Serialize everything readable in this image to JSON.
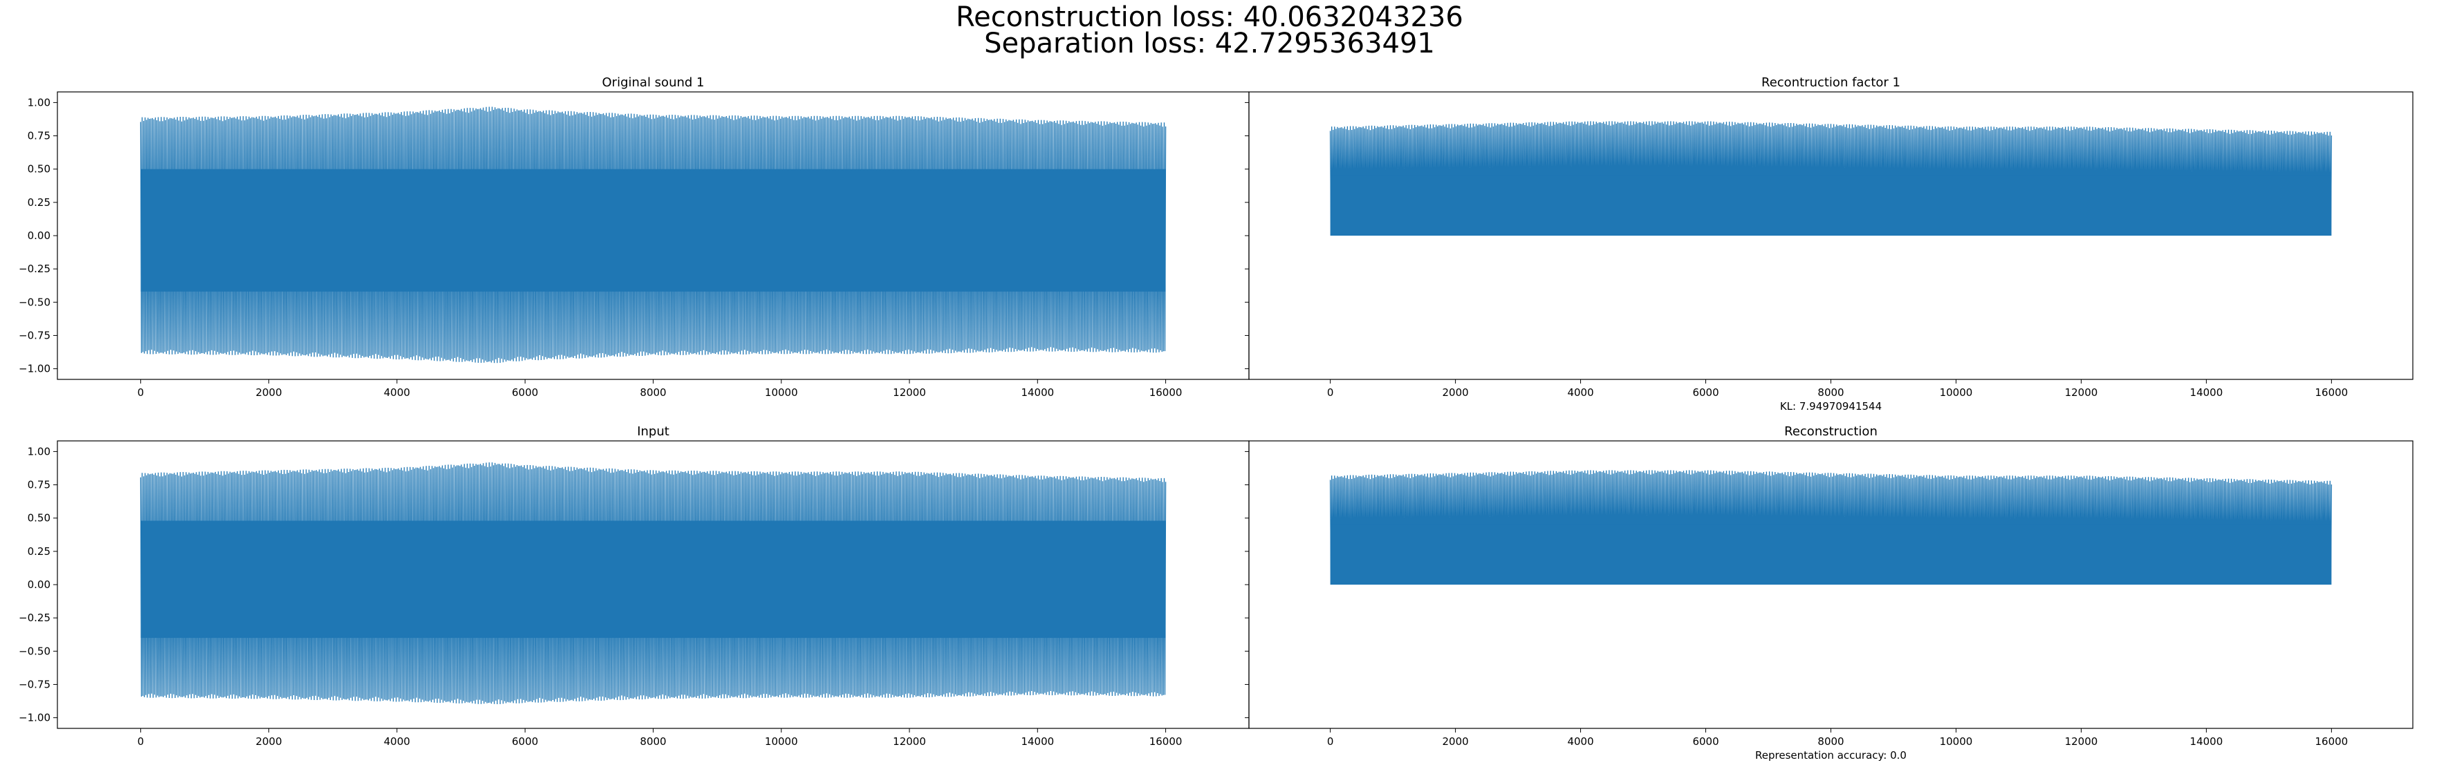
{
  "figure": {
    "suptitle_line1": "Reconstruction loss: 40.0632043236",
    "suptitle_line2": "Separation loss: 42.7295363491",
    "series_color": "#1f77b4",
    "sharey": true
  },
  "chart_data": [
    {
      "type": "line",
      "title": "Original sound 1",
      "xlabel": "",
      "xlim": [
        -1300,
        17300
      ],
      "ylim": [
        -1.08,
        1.08
      ],
      "xticks": [
        0,
        2000,
        4000,
        6000,
        8000,
        10000,
        12000,
        14000,
        16000
      ],
      "yticks": [
        1.0,
        0.75,
        0.5,
        0.25,
        0.0,
        -0.25,
        -0.5,
        -0.75,
        -1.0
      ],
      "xtick_labels": [
        "0",
        "2000",
        "4000",
        "6000",
        "8000",
        "10000",
        "12000",
        "14000",
        "16000"
      ],
      "ytick_labels": [
        "1.00",
        "0.75",
        "0.50",
        "0.25",
        "0.00",
        "−0.25",
        "−0.50",
        "−0.75",
        "−1.00"
      ],
      "signal": {
        "samples": 16000,
        "symmetric": true,
        "envelope_x": [
          0,
          2000,
          4000,
          5500,
          6000,
          8000,
          10000,
          12000,
          14000,
          16000
        ],
        "envelope_max": [
          0.89,
          0.9,
          0.93,
          0.97,
          0.95,
          0.91,
          0.9,
          0.9,
          0.87,
          0.85
        ],
        "envelope_min": [
          -0.89,
          -0.9,
          -0.93,
          -0.96,
          -0.94,
          -0.9,
          -0.89,
          -0.89,
          -0.87,
          -0.88
        ],
        "core_max": 0.5,
        "core_min": -0.42
      }
    },
    {
      "type": "line",
      "title": "Recontruction factor 1",
      "xlabel": "KL: 7.94970941544",
      "xlim": [
        -1300,
        17300
      ],
      "ylim": [
        -1.08,
        1.08
      ],
      "xticks": [
        0,
        2000,
        4000,
        6000,
        8000,
        10000,
        12000,
        14000,
        16000
      ],
      "yticks": [
        1.0,
        0.75,
        0.5,
        0.25,
        0.0,
        -0.25,
        -0.5,
        -0.75,
        -1.0
      ],
      "xtick_labels": [
        "0",
        "2000",
        "4000",
        "6000",
        "8000",
        "10000",
        "12000",
        "14000",
        "16000"
      ],
      "ytick_labels": [],
      "signal": {
        "samples": 16000,
        "symmetric": false,
        "envelope_x": [
          0,
          2000,
          4000,
          6000,
          8000,
          10000,
          12000,
          14000,
          16000
        ],
        "envelope_max": [
          0.82,
          0.84,
          0.86,
          0.86,
          0.84,
          0.82,
          0.82,
          0.8,
          0.78
        ],
        "envelope_min": [
          0,
          0,
          0,
          0,
          0,
          0,
          0,
          0,
          0
        ],
        "core_max": 0.45,
        "core_min": 0.0
      }
    },
    {
      "type": "line",
      "title": "Input",
      "xlabel": "",
      "xlim": [
        -1300,
        17300
      ],
      "ylim": [
        -1.08,
        1.08
      ],
      "xticks": [
        0,
        2000,
        4000,
        6000,
        8000,
        10000,
        12000,
        14000,
        16000
      ],
      "yticks": [
        1.0,
        0.75,
        0.5,
        0.25,
        0.0,
        -0.25,
        -0.5,
        -0.75,
        -1.0
      ],
      "xtick_labels": [
        "0",
        "2000",
        "4000",
        "6000",
        "8000",
        "10000",
        "12000",
        "14000",
        "16000"
      ],
      "ytick_labels": [
        "1.00",
        "0.75",
        "0.50",
        "0.25",
        "0.00",
        "−0.25",
        "−0.50",
        "−0.75",
        "−1.00"
      ],
      "signal": {
        "samples": 16000,
        "symmetric": true,
        "envelope_x": [
          0,
          2000,
          4000,
          5500,
          6000,
          8000,
          10000,
          12000,
          14000,
          16000
        ],
        "envelope_max": [
          0.84,
          0.86,
          0.88,
          0.92,
          0.9,
          0.86,
          0.85,
          0.85,
          0.82,
          0.8
        ],
        "envelope_min": [
          -0.85,
          -0.86,
          -0.88,
          -0.9,
          -0.89,
          -0.86,
          -0.85,
          -0.85,
          -0.83,
          -0.84
        ],
        "core_max": 0.48,
        "core_min": -0.4
      }
    },
    {
      "type": "line",
      "title": "Reconstruction",
      "xlabel": "Representation accuracy: 0.0",
      "xlim": [
        -1300,
        17300
      ],
      "ylim": [
        -1.08,
        1.08
      ],
      "xticks": [
        0,
        2000,
        4000,
        6000,
        8000,
        10000,
        12000,
        14000,
        16000
      ],
      "yticks": [
        1.0,
        0.75,
        0.5,
        0.25,
        0.0,
        -0.25,
        -0.5,
        -0.75,
        -1.0
      ],
      "xtick_labels": [
        "0",
        "2000",
        "4000",
        "6000",
        "8000",
        "10000",
        "12000",
        "14000",
        "16000"
      ],
      "ytick_labels": [],
      "signal": {
        "samples": 16000,
        "symmetric": false,
        "envelope_x": [
          0,
          2000,
          4000,
          6000,
          8000,
          10000,
          12000,
          14000,
          16000
        ],
        "envelope_max": [
          0.82,
          0.84,
          0.86,
          0.86,
          0.84,
          0.82,
          0.82,
          0.8,
          0.78
        ],
        "envelope_min": [
          0,
          0,
          0,
          0,
          0,
          0,
          0,
          0,
          0
        ],
        "core_max": 0.45,
        "core_min": 0.0
      }
    }
  ]
}
